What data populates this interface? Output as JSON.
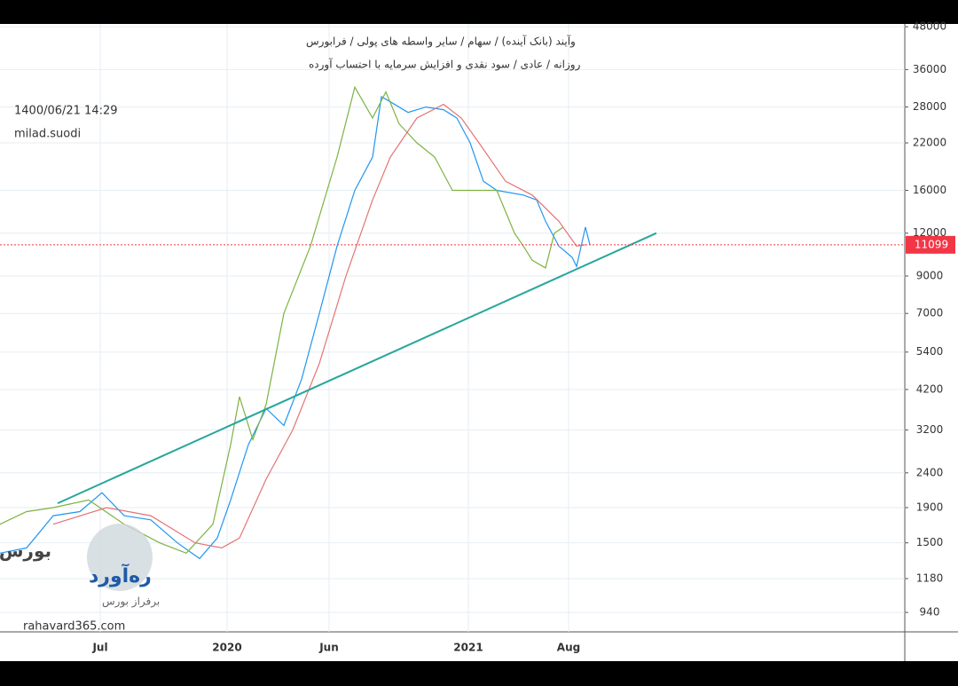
{
  "chart_data": {
    "type": "line",
    "title": "وآیند (بانک آینده) / سهام / سایر واسطه های پولی / فرابورس",
    "subtitle": "روزانه / عادی / سود نقدی و افزایش سرمایه با احتساب آورده",
    "timestamp": "1400/06/21 14:29",
    "author": "milad.suodi",
    "watermark": "rahavard365.com",
    "logo_texts": [
      "بورس",
      "ره‌آورد",
      "برفراز بورس"
    ],
    "log_scale": true,
    "grid": true,
    "ylim": [
      825,
      48900
    ],
    "yticks": [
      940,
      1180,
      1500,
      1900,
      2400,
      3200,
      4200,
      5400,
      7000,
      9000,
      12000,
      16000,
      22000,
      28000,
      36000,
      48000
    ],
    "xlim": [
      0,
      102
    ],
    "xticks": [
      {
        "value": 11.3,
        "label": "Jul"
      },
      {
        "value": 25.6,
        "label": "2020"
      },
      {
        "value": 37.1,
        "label": "Jun"
      },
      {
        "value": 52.8,
        "label": "2021"
      },
      {
        "value": 64.1,
        "label": "Aug"
      }
    ],
    "last_price": 11099,
    "last_price_color": "#f23645",
    "series": [
      {
        "color": "#2196f3",
        "x": [
          0,
          3,
          6,
          9,
          11.5,
          14,
          17,
          20,
          22.5,
          24.5,
          26,
          28,
          30,
          32,
          34,
          36,
          38,
          40,
          42,
          43,
          44,
          46,
          48,
          50,
          51.5,
          53,
          54.5,
          56,
          59,
          60.5,
          61.5,
          63,
          64.5,
          65,
          66,
          66.5
        ],
        "values": [
          1400,
          1450,
          1800,
          1850,
          2100,
          1800,
          1750,
          1500,
          1350,
          1550,
          2000,
          2900,
          3700,
          3300,
          4500,
          7000,
          11000,
          16000,
          20000,
          30000,
          29000,
          27000,
          28000,
          27500,
          26000,
          22000,
          17000,
          16000,
          15500,
          15000,
          13000,
          11000,
          10200,
          9600,
          12500,
          11099
        ]
      },
      {
        "color": "#7cb342",
        "x": [
          0,
          3,
          6,
          10,
          14,
          18,
          21,
          24,
          26,
          27,
          28.5,
          30,
          32,
          35,
          38,
          40,
          42,
          43.5,
          45,
          47,
          49,
          51,
          56,
          58,
          59,
          60,
          61.5,
          62.5,
          63.5
        ],
        "values": [
          1700,
          1850,
          1900,
          2000,
          1700,
          1500,
          1400,
          1700,
          2900,
          4000,
          3000,
          3800,
          7000,
          11000,
          20000,
          32000,
          26000,
          31000,
          25000,
          22000,
          20000,
          16000,
          16000,
          12000,
          11000,
          10000,
          9500,
          12000,
          12500
        ]
      },
      {
        "color": "#e57373",
        "x": [
          6,
          12,
          17,
          22,
          25,
          27,
          30,
          33,
          36,
          39,
          42,
          44,
          47,
          50,
          52,
          54,
          57,
          60,
          63,
          65,
          66
        ],
        "values": [
          1700,
          1900,
          1800,
          1500,
          1450,
          1550,
          2300,
          3200,
          5000,
          9000,
          15000,
          20000,
          26000,
          28500,
          26000,
          22000,
          17000,
          15500,
          13000,
          11000,
          11100
        ]
      }
    ],
    "trendline": {
      "x": [
        6.5,
        74
      ],
      "values": [
        1957,
        12000
      ],
      "color": "#26a69a"
    }
  }
}
